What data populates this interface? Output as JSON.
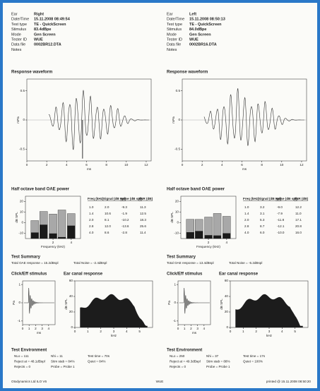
{
  "report": {
    "panels": [
      {
        "info": [
          {
            "label": "Ear",
            "value": "Right"
          },
          {
            "label": "Date/Time",
            "value": "15.11.2008 08:49:54"
          },
          {
            "label": "Test type",
            "value": "TE - QuickScreen"
          },
          {
            "label": "Stimulus",
            "value": "83.4dBpe"
          },
          {
            "label": "Mode",
            "value": "Gen Screen"
          },
          {
            "label": "Tester ID",
            "value": "WUE"
          },
          {
            "label": "Data file",
            "value": "0002BR12.DTA"
          },
          {
            "label": "Notes"
          }
        ],
        "waveform": {
          "title": "Response waveform",
          "y_label": "mPa",
          "x_label": "ms",
          "xlim": [
            0,
            12.5
          ],
          "xticks": [
            0,
            2,
            4,
            6,
            8,
            10,
            12
          ],
          "ylim": [
            -0.7,
            0.7
          ],
          "yticks": [
            0.5,
            0,
            -0.5
          ]
        },
        "band": {
          "title": "Half octave band OAE power",
          "y_label": "dB SPL",
          "x_label": "Frequency (kHz)",
          "ylim": [
            -15,
            25
          ],
          "yticks": [
            20,
            10,
            0,
            -10
          ],
          "xlim": [
            0.7,
            5.7
          ],
          "xticks": [
            2,
            4
          ],
          "log_x": true,
          "table": {
            "headers": [
              "Freq (kHz)",
              "Signal (dB spl)",
              "Noise (dB spl)",
              "SNR (dB)"
            ],
            "rows": [
              [
                "1.0",
                "2.0",
                "-9.3",
                "11.3"
              ],
              [
                "1.4",
                "10.6",
                "-1.9",
                "12.5"
              ],
              [
                "2.0",
                "8.1",
                "-10.2",
                "18.3"
              ],
              [
                "2.8",
                "12.0",
                "-13.6",
                "25.6"
              ],
              [
                "4.0",
                "8.6",
                "-2.8",
                "11.4"
              ]
            ]
          }
        },
        "summary": {
          "title": "Test Summary",
          "items": [
            "Total OAE response = 15.2dBspl",
            "Total Noise = -2.4dBspl"
          ]
        },
        "stimulus": {
          "title": "Click/Eff stimulus",
          "y_label": "Pa",
          "x_label": "ms",
          "xlim": [
            0,
            5
          ],
          "xticks": [
            0,
            1,
            2,
            3,
            4
          ],
          "ylim": [
            -1.2,
            1.2
          ],
          "yticks": [
            1,
            0,
            -1
          ]
        },
        "canal": {
          "title": "Ear canal response",
          "y_label": "dB SPL",
          "x_label": "kHz",
          "xlim": [
            0,
            6
          ],
          "xticks": [
            0,
            1,
            2,
            3,
            4,
            5
          ],
          "ylim": [
            0,
            60
          ],
          "yticks": [
            60,
            40,
            20,
            0
          ]
        },
        "environment": {
          "title": "Test Environment",
          "rows": [
            [
              "NLo = 111",
              "Nhi = 11",
              "Test time = 70s"
            ],
            [
              "Reject at = 48.1dBspl",
              "Stim stab = 84%",
              "Quiet = 84%"
            ],
            [
              "Rejects = 0",
              "Probe = Probe 1"
            ]
          ]
        }
      },
      {
        "info": [
          {
            "label": "Ear",
            "value": "Left"
          },
          {
            "label": "Date/Time",
            "value": "15.11.2008 08:50:13"
          },
          {
            "label": "Test type",
            "value": "TE - QuickScreen"
          },
          {
            "label": "Stimulus",
            "value": "84.0dBpe"
          },
          {
            "label": "Mode",
            "value": "Gen Screen"
          },
          {
            "label": "Tester ID",
            "value": "WUE"
          },
          {
            "label": "Data file",
            "value": "0002BR16.DTA"
          },
          {
            "label": "Notes"
          }
        ],
        "waveform": {
          "title": "Response waveform",
          "y_label": "mPa",
          "x_label": "ms",
          "xlim": [
            0,
            12.5
          ],
          "xticks": [
            0,
            2,
            4,
            6,
            8,
            10,
            12
          ],
          "ylim": [
            -0.7,
            0.7
          ],
          "yticks": [
            0.5,
            0,
            -0.5
          ]
        },
        "band": {
          "title": "Half octave band OAE power",
          "y_label": "dB SPL",
          "x_label": "Frequency (kHz)",
          "ylim": [
            -15,
            25
          ],
          "yticks": [
            20,
            10,
            0,
            -10
          ],
          "xlim": [
            0.7,
            5.7
          ],
          "xticks": [
            2,
            4
          ],
          "log_x": true,
          "table": {
            "headers": [
              "Freq (kHz)",
              "Signal (dB spl)",
              "Noise (dB spl)",
              "SNR (dB)"
            ],
            "rows": [
              [
                "1.0",
                "3.2",
                "-9.0",
                "12.2"
              ],
              [
                "1.4",
                "3.1",
                "-7.9",
                "11.0"
              ],
              [
                "2.0",
                "5.3",
                "-11.8",
                "17.1"
              ],
              [
                "2.8",
                "8.7",
                "-12.1",
                "20.8"
              ],
              [
                "4.0",
                "6.0",
                "-10.0",
                "16.0"
              ]
            ]
          }
        },
        "summary": {
          "title": "Test Summary",
          "items": [
            "Total OAE response = 13.4dBspl",
            "Total Noise = -5.2dBspl"
          ]
        },
        "stimulus": {
          "title": "Click/Eff stimulus",
          "y_label": "Pa",
          "x_label": "ms",
          "xlim": [
            0,
            5
          ],
          "xticks": [
            0,
            1,
            2,
            3,
            4
          ],
          "ylim": [
            -1.2,
            1.2
          ],
          "yticks": [
            1,
            0,
            -1
          ]
        },
        "canal": {
          "title": "Ear canal response",
          "y_label": "dB SPL",
          "x_label": "kHz",
          "xlim": [
            0,
            6
          ],
          "xticks": [
            0,
            1,
            2,
            3,
            4,
            5
          ],
          "ylim": [
            0,
            60
          ],
          "yticks": [
            60,
            40,
            20,
            0
          ]
        },
        "environment": {
          "title": "Test Environment",
          "rows": [
            [
              "NLo = 250",
              "Nhi = 37",
              "Test time = 17s"
            ],
            [
              "Reject at = 49.3dBspl",
              "Stim stab = 88%",
              "Quiet = 100%"
            ],
            [
              "Rejects = 0",
              "Probe = Probe 1"
            ]
          ]
        }
      }
    ],
    "footer": [
      "Otodynamics Ltd ILO V6",
      "WUE",
      "printed @ 15.11.2008 08:50:20"
    ]
  }
}
